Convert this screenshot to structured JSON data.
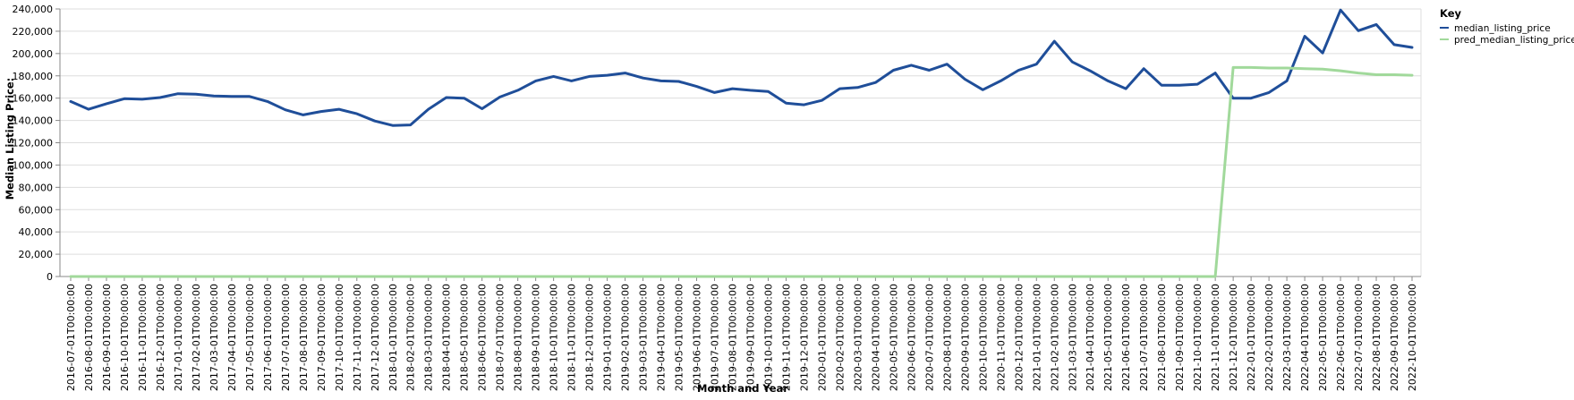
{
  "chart_data": {
    "type": "line",
    "xlabel": "Month and Year",
    "ylabel": "Median Listing Price:",
    "ylim": [
      0,
      240000
    ],
    "y_ticks": [
      0,
      20000,
      40000,
      60000,
      80000,
      100000,
      120000,
      140000,
      160000,
      180000,
      200000,
      220000,
      240000
    ],
    "y_tick_labels": [
      "0",
      "20,000",
      "40,000",
      "60,000",
      "80,000",
      "100,000",
      "120,000",
      "140,000",
      "160,000",
      "180,000",
      "200,000",
      "220,000",
      "240,000"
    ],
    "grid": true,
    "legend": {
      "title": "Key",
      "placement": "top-right"
    },
    "x": [
      "2016-07-01T00:00:00",
      "2016-08-01T00:00:00",
      "2016-09-01T00:00:00",
      "2016-10-01T00:00:00",
      "2016-11-01T00:00:00",
      "2016-12-01T00:00:00",
      "2017-01-01T00:00:00",
      "2017-02-01T00:00:00",
      "2017-03-01T00:00:00",
      "2017-04-01T00:00:00",
      "2017-05-01T00:00:00",
      "2017-06-01T00:00:00",
      "2017-07-01T00:00:00",
      "2017-08-01T00:00:00",
      "2017-09-01T00:00:00",
      "2017-10-01T00:00:00",
      "2017-11-01T00:00:00",
      "2017-12-01T00:00:00",
      "2018-01-01T00:00:00",
      "2018-02-01T00:00:00",
      "2018-03-01T00:00:00",
      "2018-04-01T00:00:00",
      "2018-05-01T00:00:00",
      "2018-06-01T00:00:00",
      "2018-07-01T00:00:00",
      "2018-08-01T00:00:00",
      "2018-09-01T00:00:00",
      "2018-10-01T00:00:00",
      "2018-11-01T00:00:00",
      "2018-12-01T00:00:00",
      "2019-01-01T00:00:00",
      "2019-02-01T00:00:00",
      "2019-03-01T00:00:00",
      "2019-04-01T00:00:00",
      "2019-05-01T00:00:00",
      "2019-06-01T00:00:00",
      "2019-07-01T00:00:00",
      "2019-08-01T00:00:00",
      "2019-09-01T00:00:00",
      "2019-10-01T00:00:00",
      "2019-11-01T00:00:00",
      "2019-12-01T00:00:00",
      "2020-01-01T00:00:00",
      "2020-02-01T00:00:00",
      "2020-03-01T00:00:00",
      "2020-04-01T00:00:00",
      "2020-05-01T00:00:00",
      "2020-06-01T00:00:00",
      "2020-07-01T00:00:00",
      "2020-08-01T00:00:00",
      "2020-09-01T00:00:00",
      "2020-10-01T00:00:00",
      "2020-11-01T00:00:00",
      "2020-12-01T00:00:00",
      "2021-01-01T00:00:00",
      "2021-02-01T00:00:00",
      "2021-03-01T00:00:00",
      "2021-04-01T00:00:00",
      "2021-05-01T00:00:00",
      "2021-06-01T00:00:00",
      "2021-07-01T00:00:00",
      "2021-08-01T00:00:00",
      "2021-09-01T00:00:00",
      "2021-10-01T00:00:00",
      "2021-11-01T00:00:00",
      "2021-12-01T00:00:00",
      "2022-01-01T00:00:00",
      "2022-02-01T00:00:00",
      "2022-03-01T00:00:00",
      "2022-04-01T00:00:00",
      "2022-05-01T00:00:00",
      "2022-06-01T00:00:00",
      "2022-07-01T00:00:00",
      "2022-08-01T00:00:00",
      "2022-09-01T00:00:00",
      "2022-10-01T00:00:00"
    ],
    "series": [
      {
        "name": "median_listing_price",
        "color": "#1f4e99",
        "values": [
          157000,
          150000,
          155000,
          159500,
          159000,
          160500,
          164000,
          163500,
          162000,
          161500,
          161500,
          157000,
          149500,
          145000,
          148000,
          150000,
          146000,
          139500,
          135500,
          136000,
          150000,
          160500,
          160000,
          150500,
          161000,
          167000,
          175500,
          179500,
          175500,
          179500,
          180500,
          182500,
          178000,
          175500,
          175000,
          170500,
          165000,
          168500,
          167000,
          166000,
          155500,
          154000,
          158000,
          168500,
          169500,
          174000,
          185000,
          189500,
          185000,
          190500,
          177000,
          167500,
          175500,
          185000,
          190500,
          211000,
          192500,
          184500,
          175500,
          168500,
          186500,
          171500,
          171500,
          172500,
          182500,
          160000,
          160000,
          165000,
          175500,
          215500,
          200500,
          239000,
          220500,
          226000,
          208000,
          205500
        ]
      },
      {
        "name": "pred_median_listing_price",
        "color": "#a1d99b",
        "values": [
          0,
          0,
          0,
          0,
          0,
          0,
          0,
          0,
          0,
          0,
          0,
          0,
          0,
          0,
          0,
          0,
          0,
          0,
          0,
          0,
          0,
          0,
          0,
          0,
          0,
          0,
          0,
          0,
          0,
          0,
          0,
          0,
          0,
          0,
          0,
          0,
          0,
          0,
          0,
          0,
          0,
          0,
          0,
          0,
          0,
          0,
          0,
          0,
          0,
          0,
          0,
          0,
          0,
          0,
          0,
          0,
          0,
          0,
          0,
          0,
          0,
          0,
          0,
          0,
          0,
          187500,
          187500,
          187000,
          187000,
          186500,
          186000,
          184500,
          182500,
          181000,
          181000,
          180500
        ]
      }
    ]
  }
}
